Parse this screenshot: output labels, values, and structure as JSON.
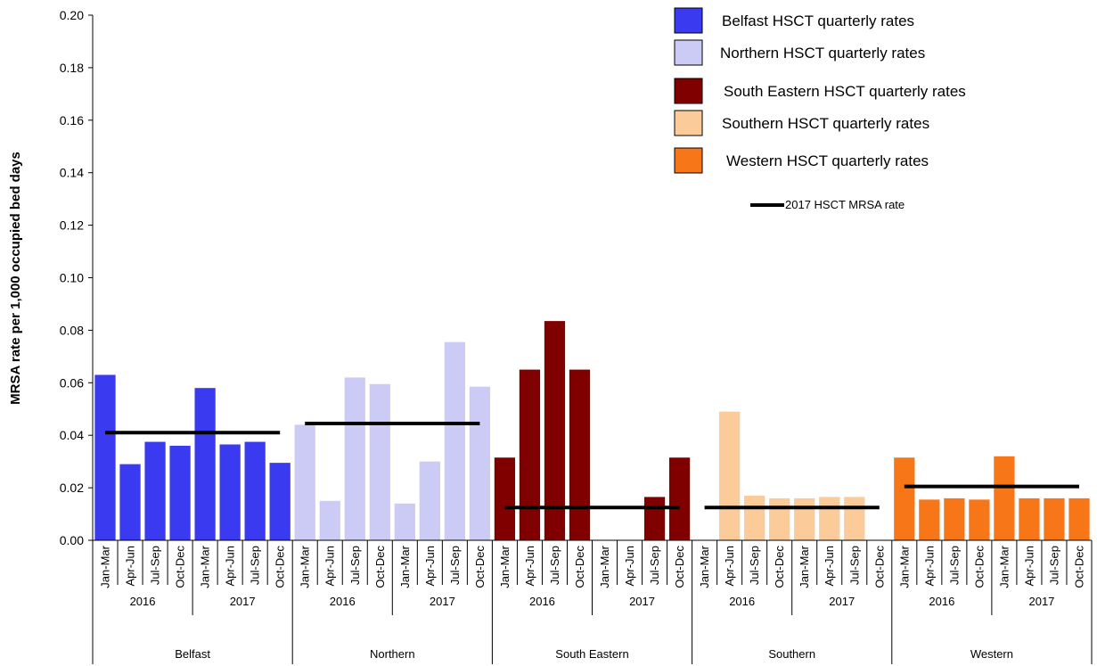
{
  "chart_data": {
    "type": "bar",
    "title": "",
    "xlabel": "",
    "ylabel": "MRSA rate per 1,000 occupied bed days",
    "ylim": [
      0,
      0.2
    ],
    "yticks": [
      "0.00",
      "0.02",
      "0.04",
      "0.06",
      "0.08",
      "0.10",
      "0.12",
      "0.14",
      "0.16",
      "0.18",
      "0.20"
    ],
    "quarters": [
      "Jan-Mar",
      "Apr-Jun",
      "Jul-Sep",
      "Oct-Dec"
    ],
    "years": [
      "2016",
      "2017"
    ],
    "grid": false,
    "legend_position": "top-right",
    "groups": [
      {
        "name": "Belfast",
        "legend": "Belfast  HSCT quarterly rates",
        "color": "#3a3af0",
        "values": [
          0.063,
          0.029,
          0.0375,
          0.036,
          0.058,
          0.0365,
          0.0375,
          0.0295
        ],
        "line": 0.041
      },
      {
        "name": "Northern",
        "legend": "Northern  HSCT quarterly rates",
        "color": "#cbcbf5",
        "values": [
          0.044,
          0.015,
          0.062,
          0.0595,
          0.014,
          0.03,
          0.0755,
          0.0585
        ],
        "line": 0.0445
      },
      {
        "name": "South Eastern",
        "legend": "South Eastern HSCT quarterly rates",
        "color": "#800000",
        "values": [
          0.0315,
          0.065,
          0.0835,
          0.065,
          0,
          0,
          0.0165,
          0.0315
        ],
        "line": 0.0125
      },
      {
        "name": "Southern",
        "legend": "Southern  HSCT quarterly rates",
        "color": "#fbcb9a",
        "values": [
          0,
          0.049,
          0.017,
          0.016,
          0.016,
          0.0165,
          0.0165,
          0
        ],
        "line": 0.0125
      },
      {
        "name": "Western",
        "legend": "Western  HSCT quarterly rates",
        "color": "#f77617",
        "values": [
          0.0315,
          0.0155,
          0.016,
          0.0155,
          0.032,
          0.016,
          0.016,
          0.016
        ],
        "line": 0.0205
      }
    ],
    "line_series_label": "2017 HSCT MRSA rate",
    "line_color": "#000000"
  }
}
